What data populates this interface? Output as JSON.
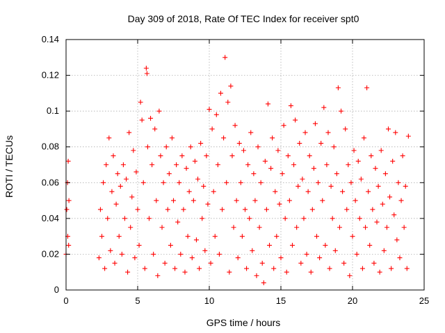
{
  "chart_data": {
    "type": "scatter",
    "title": "Day 309 of 2018, Rate Of TEC Index for receiver spt0",
    "xlabel": "GPS time / hours",
    "ylabel": "ROTI / TECUs",
    "xlim": [
      0,
      25
    ],
    "ylim": [
      0,
      0.14
    ],
    "xticks": [
      0,
      5,
      10,
      15,
      20,
      25
    ],
    "xtick_labels": [
      "0",
      "5",
      "10",
      "15",
      "20",
      "25"
    ],
    "yticks": [
      0,
      0.02,
      0.04,
      0.06,
      0.08,
      0.1,
      0.12,
      0.14
    ],
    "ytick_labels": [
      "0",
      "0.02",
      "0.04",
      "0.06",
      "0.08",
      "0.1",
      "0.12",
      "0.14"
    ],
    "grid": true,
    "marker": "plus",
    "color": "#ff0000",
    "series": [
      {
        "name": "ROTI",
        "points": [
          [
            0.0,
            0.02
          ],
          [
            0.05,
            0.045
          ],
          [
            0.1,
            0.06
          ],
          [
            0.12,
            0.03
          ],
          [
            0.15,
            0.072
          ],
          [
            0.18,
            0.025
          ],
          [
            0.2,
            0.05
          ],
          [
            2.3,
            0.018
          ],
          [
            2.4,
            0.045
          ],
          [
            2.5,
            0.03
          ],
          [
            2.6,
            0.06
          ],
          [
            2.7,
            0.012
          ],
          [
            2.8,
            0.07
          ],
          [
            2.9,
            0.04
          ],
          [
            3.0,
            0.085
          ],
          [
            3.1,
            0.022
          ],
          [
            3.2,
            0.055
          ],
          [
            3.3,
            0.075
          ],
          [
            3.4,
            0.015
          ],
          [
            3.5,
            0.048
          ],
          [
            3.6,
            0.065
          ],
          [
            3.7,
            0.03
          ],
          [
            3.8,
            0.058
          ],
          [
            3.9,
            0.02
          ],
          [
            4.0,
            0.07
          ],
          [
            4.1,
            0.04
          ],
          [
            4.2,
            0.062
          ],
          [
            4.3,
            0.01
          ],
          [
            4.4,
            0.088
          ],
          [
            4.5,
            0.035
          ],
          [
            4.6,
            0.052
          ],
          [
            4.7,
            0.078
          ],
          [
            4.8,
            0.018
          ],
          [
            4.9,
            0.066
          ],
          [
            5.0,
            0.045
          ],
          [
            5.1,
            0.025
          ],
          [
            5.2,
            0.105
          ],
          [
            5.3,
            0.095
          ],
          [
            5.4,
            0.06
          ],
          [
            5.5,
            0.012
          ],
          [
            5.6,
            0.124
          ],
          [
            5.65,
            0.121
          ],
          [
            5.7,
            0.08
          ],
          [
            5.8,
            0.04
          ],
          [
            5.9,
            0.096
          ],
          [
            6.0,
            0.07
          ],
          [
            6.1,
            0.02
          ],
          [
            6.2,
            0.09
          ],
          [
            6.3,
            0.05
          ],
          [
            6.4,
            0.008
          ],
          [
            6.5,
            0.1
          ],
          [
            6.6,
            0.075
          ],
          [
            6.7,
            0.035
          ],
          [
            6.8,
            0.06
          ],
          [
            6.9,
            0.015
          ],
          [
            7.0,
            0.08
          ],
          [
            7.1,
            0.045
          ],
          [
            7.2,
            0.065
          ],
          [
            7.3,
            0.025
          ],
          [
            7.4,
            0.085
          ],
          [
            7.5,
            0.05
          ],
          [
            7.6,
            0.012
          ],
          [
            7.7,
            0.07
          ],
          [
            7.8,
            0.038
          ],
          [
            7.9,
            0.06
          ],
          [
            8.0,
            0.02
          ],
          [
            8.1,
            0.075
          ],
          [
            8.2,
            0.045
          ],
          [
            8.3,
            0.01
          ],
          [
            8.4,
            0.068
          ],
          [
            8.5,
            0.03
          ],
          [
            8.6,
            0.055
          ],
          [
            8.7,
            0.08
          ],
          [
            8.8,
            0.018
          ],
          [
            8.9,
            0.05
          ],
          [
            9.0,
            0.072
          ],
          [
            9.1,
            0.028
          ],
          [
            9.2,
            0.062
          ],
          [
            9.3,
            0.012
          ],
          [
            9.4,
            0.082
          ],
          [
            9.5,
            0.04
          ],
          [
            9.6,
            0.058
          ],
          [
            9.7,
            0.022
          ],
          [
            9.8,
            0.075
          ],
          [
            9.9,
            0.048
          ],
          [
            10.0,
            0.101
          ],
          [
            10.1,
            0.015
          ],
          [
            10.2,
            0.09
          ],
          [
            10.3,
            0.055
          ],
          [
            10.4,
            0.03
          ],
          [
            10.5,
            0.098
          ],
          [
            10.6,
            0.07
          ],
          [
            10.7,
            0.02
          ],
          [
            10.8,
            0.11
          ],
          [
            10.9,
            0.045
          ],
          [
            11.0,
            0.085
          ],
          [
            11.1,
            0.13
          ],
          [
            11.2,
            0.06
          ],
          [
            11.3,
            0.105
          ],
          [
            11.4,
            0.01
          ],
          [
            11.5,
            0.114
          ],
          [
            11.6,
            0.075
          ],
          [
            11.7,
            0.035
          ],
          [
            11.8,
            0.092
          ],
          [
            11.9,
            0.05
          ],
          [
            12.0,
            0.018
          ],
          [
            12.1,
            0.082
          ],
          [
            12.2,
            0.06
          ],
          [
            12.3,
            0.03
          ],
          [
            12.4,
            0.078
          ],
          [
            12.5,
            0.045
          ],
          [
            12.6,
            0.012
          ],
          [
            12.7,
            0.07
          ],
          [
            12.8,
            0.04
          ],
          [
            12.9,
            0.088
          ],
          [
            13.0,
            0.022
          ],
          [
            13.1,
            0.065
          ],
          [
            13.2,
            0.05
          ],
          [
            13.3,
            0.008
          ],
          [
            13.4,
            0.08
          ],
          [
            13.5,
            0.035
          ],
          [
            13.6,
            0.06
          ],
          [
            13.7,
            0.015
          ],
          [
            13.8,
            0.004
          ],
          [
            13.9,
            0.072
          ],
          [
            14.0,
            0.045
          ],
          [
            14.1,
            0.104
          ],
          [
            14.2,
            0.025
          ],
          [
            14.3,
            0.068
          ],
          [
            14.4,
            0.085
          ],
          [
            14.5,
            0.012
          ],
          [
            14.6,
            0.055
          ],
          [
            14.7,
            0.03
          ],
          [
            14.8,
            0.078
          ],
          [
            14.9,
            0.048
          ],
          [
            15.0,
            0.018
          ],
          [
            15.1,
            0.065
          ],
          [
            15.2,
            0.092
          ],
          [
            15.3,
            0.04
          ],
          [
            15.4,
            0.01
          ],
          [
            15.5,
            0.075
          ],
          [
            15.6,
            0.05
          ],
          [
            15.7,
            0.103
          ],
          [
            15.8,
            0.025
          ],
          [
            15.9,
            0.07
          ],
          [
            16.0,
            0.095
          ],
          [
            16.1,
            0.035
          ],
          [
            16.2,
            0.058
          ],
          [
            16.3,
            0.082
          ],
          [
            16.4,
            0.015
          ],
          [
            16.5,
            0.062
          ],
          [
            16.6,
            0.04
          ],
          [
            16.7,
            0.088
          ],
          [
            16.8,
            0.02
          ],
          [
            16.9,
            0.055
          ],
          [
            17.0,
            0.075
          ],
          [
            17.1,
            0.01
          ],
          [
            17.2,
            0.045
          ],
          [
            17.3,
            0.068
          ],
          [
            17.4,
            0.093
          ],
          [
            17.5,
            0.03
          ],
          [
            17.6,
            0.06
          ],
          [
            17.7,
            0.018
          ],
          [
            17.8,
            0.082
          ],
          [
            17.9,
            0.05
          ],
          [
            18.0,
            0.102
          ],
          [
            18.1,
            0.025
          ],
          [
            18.2,
            0.07
          ],
          [
            18.3,
            0.088
          ],
          [
            18.4,
            0.012
          ],
          [
            18.5,
            0.058
          ],
          [
            18.6,
            0.04
          ],
          [
            18.7,
            0.08
          ],
          [
            18.8,
            0.022
          ],
          [
            18.9,
            0.065
          ],
          [
            19.0,
            0.113
          ],
          [
            19.1,
            0.035
          ],
          [
            19.2,
            0.1
          ],
          [
            19.3,
            0.055
          ],
          [
            19.4,
            0.015
          ],
          [
            19.5,
            0.09
          ],
          [
            19.6,
            0.045
          ],
          [
            19.7,
            0.07
          ],
          [
            19.8,
            0.008
          ],
          [
            19.9,
            0.06
          ],
          [
            20.0,
            0.03
          ],
          [
            20.1,
            0.078
          ],
          [
            20.2,
            0.05
          ],
          [
            20.3,
            0.02
          ],
          [
            20.4,
            0.072
          ],
          [
            20.5,
            0.04
          ],
          [
            20.6,
            0.062
          ],
          [
            20.7,
            0.012
          ],
          [
            20.8,
            0.085
          ],
          [
            20.9,
            0.035
          ],
          [
            21.0,
            0.113
          ],
          [
            21.1,
            0.055
          ],
          [
            21.2,
            0.025
          ],
          [
            21.3,
            0.075
          ],
          [
            21.4,
            0.045
          ],
          [
            21.5,
            0.015
          ],
          [
            21.6,
            0.068
          ],
          [
            21.7,
            0.038
          ],
          [
            21.8,
            0.058
          ],
          [
            21.9,
            0.01
          ],
          [
            22.0,
            0.078
          ],
          [
            22.1,
            0.048
          ],
          [
            22.2,
            0.022
          ],
          [
            22.3,
            0.065
          ],
          [
            22.4,
            0.035
          ],
          [
            22.5,
            0.09
          ],
          [
            22.6,
            0.052
          ],
          [
            22.7,
            0.012
          ],
          [
            22.8,
            0.072
          ],
          [
            22.9,
            0.042
          ],
          [
            23.0,
            0.088
          ],
          [
            23.1,
            0.028
          ],
          [
            23.2,
            0.06
          ],
          [
            23.3,
            0.018
          ],
          [
            23.4,
            0.05
          ],
          [
            23.5,
            0.075
          ],
          [
            23.6,
            0.035
          ],
          [
            23.7,
            0.058
          ],
          [
            23.8,
            0.012
          ],
          [
            23.9,
            0.086
          ]
        ]
      }
    ]
  }
}
